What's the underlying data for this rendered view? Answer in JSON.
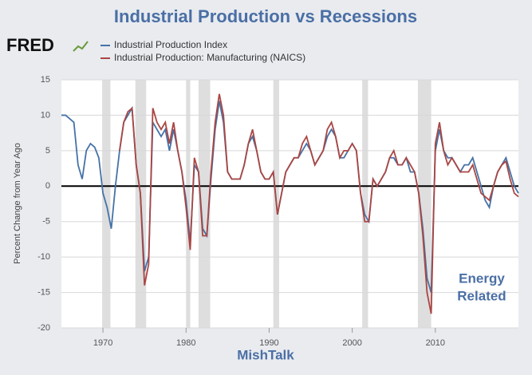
{
  "chart_data": {
    "type": "line",
    "title": "Industrial Production vs Recessions",
    "logo": "FRED",
    "y_label": "Percent Change from Year Ago",
    "footer": "MishTalk",
    "annotation": [
      "Energy",
      "Related"
    ],
    "xlim": [
      1965,
      2020
    ],
    "xticks": [
      1970,
      1980,
      1990,
      2000,
      2010
    ],
    "ylim": [
      -20,
      15
    ],
    "yticks": [
      15,
      10,
      5,
      0,
      -5,
      -10,
      -15,
      -20
    ],
    "grid": true,
    "recessions": [
      [
        1969.9,
        1970.9
      ],
      [
        1973.9,
        1975.2
      ],
      [
        1980.0,
        1980.5
      ],
      [
        1981.5,
        1982.9
      ],
      [
        1990.5,
        1991.2
      ],
      [
        2001.2,
        2001.9
      ],
      [
        2007.9,
        2009.5
      ]
    ],
    "x": [
      1965,
      1965.5,
      1966,
      1966.5,
      1967,
      1967.5,
      1968,
      1968.5,
      1969,
      1969.5,
      1970,
      1970.5,
      1971,
      1971.5,
      1972,
      1972.5,
      1973,
      1973.5,
      1974,
      1974.5,
      1975,
      1975.5,
      1976,
      1976.5,
      1977,
      1977.5,
      1978,
      1978.5,
      1979,
      1979.5,
      1980,
      1980.5,
      1981,
      1981.5,
      1982,
      1982.5,
      1983,
      1983.5,
      1984,
      1984.5,
      1985,
      1985.5,
      1986,
      1986.5,
      1987,
      1987.5,
      1988,
      1988.5,
      1989,
      1989.5,
      1990,
      1990.5,
      1991,
      1991.5,
      1992,
      1992.5,
      1993,
      1993.5,
      1994,
      1994.5,
      1995,
      1995.5,
      1996,
      1996.5,
      1997,
      1997.5,
      1998,
      1998.5,
      1999,
      1999.5,
      2000,
      2000.5,
      2001,
      2001.5,
      2002,
      2002.5,
      2003,
      2003.5,
      2004,
      2004.5,
      2005,
      2005.5,
      2006,
      2006.5,
      2007,
      2007.5,
      2008,
      2008.5,
      2009,
      2009.5,
      2010,
      2010.5,
      2011,
      2011.5,
      2012,
      2012.5,
      2013,
      2013.5,
      2014,
      2014.5,
      2015,
      2015.5,
      2016,
      2016.5,
      2017,
      2017.5,
      2018,
      2018.5,
      2019,
      2019.5,
      2020
    ],
    "series": [
      {
        "name": "Industrial Production Index",
        "color": "#4572a7",
        "values": [
          10,
          10,
          9.5,
          9,
          3,
          1,
          5,
          6,
          5.5,
          4,
          -1,
          -3,
          -6,
          0,
          5,
          9,
          10,
          11,
          3,
          -1,
          -12,
          -10,
          9,
          8,
          7,
          8,
          5,
          8,
          5,
          2,
          -2,
          -8,
          3,
          2,
          -6,
          -7,
          1,
          8,
          12,
          9,
          2,
          1,
          1,
          1,
          3,
          6,
          7,
          5,
          2,
          1,
          1,
          2,
          -4,
          -1,
          2,
          3,
          4,
          4,
          5,
          6,
          5,
          3,
          4,
          5,
          7,
          8,
          7,
          4,
          4,
          5,
          6,
          5,
          -1,
          -4,
          -5,
          1,
          0,
          1,
          2,
          4,
          4,
          3,
          3,
          4,
          2,
          2,
          -1,
          -6,
          -13,
          -15,
          5,
          8,
          5,
          4,
          4,
          3,
          2,
          3,
          3,
          4,
          2,
          0,
          -2,
          -3,
          0,
          2,
          3,
          4,
          2,
          0,
          -1
        ]
      },
      {
        "name": "Industrial Production: Manufacturing (NAICS)",
        "color": "#aa4643",
        "values": [
          null,
          null,
          null,
          null,
          null,
          null,
          null,
          null,
          null,
          null,
          null,
          null,
          null,
          null,
          5,
          9,
          10.5,
          11,
          3,
          -1,
          -14,
          -11,
          11,
          9,
          8,
          9,
          6,
          9,
          5,
          2,
          -3,
          -9,
          4,
          2,
          -7,
          -7,
          2,
          9,
          13,
          10,
          2,
          1,
          1,
          1,
          3,
          6,
          8,
          5,
          2,
          1,
          1,
          2,
          -4,
          -1,
          2,
          3,
          4,
          4,
          6,
          7,
          5,
          3,
          4,
          5,
          8,
          9,
          7,
          4,
          5,
          5,
          6,
          5,
          -1,
          -5,
          -5,
          1,
          0,
          1,
          2,
          4,
          5,
          3,
          3,
          4,
          3,
          2,
          -1,
          -7,
          -15,
          -18,
          6,
          9,
          5,
          3,
          4,
          3,
          2,
          2,
          2,
          3,
          1,
          -1,
          -1.5,
          -2,
          0,
          2,
          3,
          3.5,
          1,
          -1,
          -1.5
        ]
      }
    ]
  }
}
